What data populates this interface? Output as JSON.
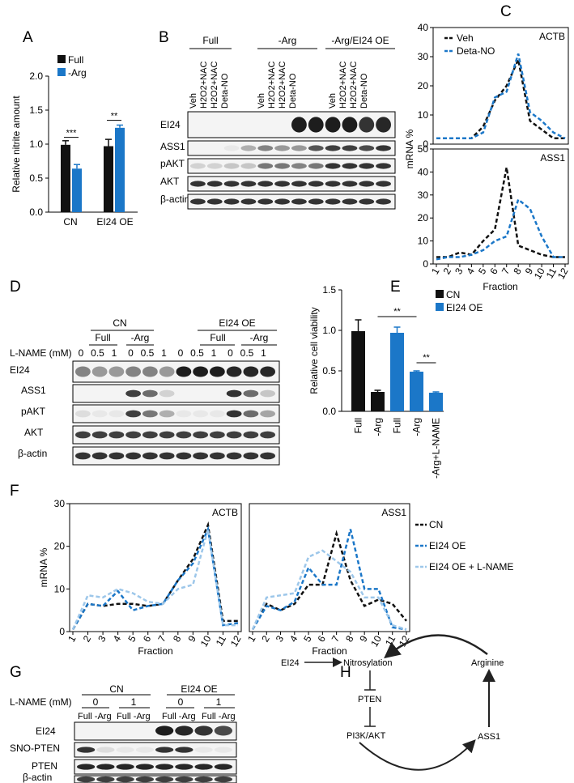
{
  "panel_labels": {
    "A": "A",
    "B": "B",
    "C": "C",
    "D": "D",
    "E": "E",
    "F": "F",
    "G": "G",
    "H": "H"
  },
  "colors": {
    "black": "#111111",
    "blue": "#1b77c8",
    "lightblue": "#9dc7ea"
  },
  "chart_data": [
    {
      "id": "A",
      "type": "bar",
      "ylabel": "Relative nitrite amount",
      "ylim": [
        0,
        2.0
      ],
      "yticks": [
        "0.0",
        "0.5",
        "1.0",
        "1.5",
        "2.0"
      ],
      "categories": [
        "CN",
        "EI24 OE"
      ],
      "series": [
        {
          "name": "Full",
          "values": [
            0.99,
            0.97
          ],
          "errors": [
            0.06,
            0.1
          ]
        },
        {
          "name": "-Arg",
          "values": [
            0.64,
            1.24
          ],
          "errors": [
            0.06,
            0.04
          ]
        }
      ],
      "significance": [
        "***",
        "**"
      ]
    },
    {
      "id": "C-top",
      "type": "line",
      "title": "ACTB",
      "ylim": [
        0,
        40
      ],
      "yticks": [
        "0",
        "10",
        "20",
        "30",
        "40"
      ],
      "series": [
        {
          "name": "Veh",
          "values": [
            2,
            2,
            2,
            2,
            6,
            15,
            20,
            29,
            8,
            5,
            2,
            2
          ]
        },
        {
          "name": "Deta-NO",
          "values": [
            2,
            2,
            2,
            2,
            4,
            16,
            18,
            31,
            11,
            8,
            4,
            2
          ]
        }
      ]
    },
    {
      "id": "C-bottom",
      "type": "line",
      "title": "ASS1",
      "ylim": [
        0,
        50
      ],
      "yticks": [
        "0",
        "10",
        "20",
        "30",
        "40",
        "50"
      ],
      "xlabel": "Fraction",
      "ylabel": "mRNA %",
      "x": [
        "1",
        "2",
        "3",
        "4",
        "5",
        "6",
        "7",
        "8",
        "9",
        "10",
        "11",
        "12"
      ],
      "series": [
        {
          "name": "Veh",
          "values": [
            3,
            3,
            5,
            4,
            10,
            15,
            42,
            8,
            6,
            4,
            3,
            3
          ]
        },
        {
          "name": "Deta-NO",
          "values": [
            2,
            3,
            3,
            4,
            6,
            10,
            12,
            28,
            24,
            12,
            3,
            3
          ]
        }
      ]
    },
    {
      "id": "E",
      "type": "bar",
      "ylabel": "Relative cell viability",
      "ylim": [
        0,
        1.5
      ],
      "yticks": [
        "0.0",
        "0.5",
        "1.0",
        "1.5"
      ],
      "categories": [
        "Full",
        "-Arg",
        "Full",
        "-Arg",
        "-Arg+L-NAME"
      ],
      "values": [
        0.99,
        0.24,
        0.97,
        0.49,
        0.23
      ],
      "errors": [
        0.14,
        0.02,
        0.07,
        0.01,
        0.01
      ],
      "series_names": [
        "CN",
        "EI24 OE"
      ],
      "significance": [
        "**",
        "**"
      ]
    },
    {
      "id": "F-left",
      "type": "line",
      "title": "ACTB",
      "ylim": [
        0,
        30
      ],
      "yticks": [
        "0",
        "10",
        "20",
        "30"
      ],
      "xlabel": "Fraction",
      "ylabel": "mRNA %",
      "x": [
        "1",
        "2",
        "3",
        "4",
        "5",
        "6",
        "7",
        "8",
        "9",
        "10",
        "11",
        "12"
      ],
      "series": [
        {
          "name": "CN",
          "values": [
            0.5,
            6.5,
            6,
            6.5,
            6.5,
            6,
            6.5,
            12,
            17,
            25,
            2.5,
            2.5
          ]
        },
        {
          "name": "EI24 OE",
          "values": [
            0.5,
            6.5,
            6,
            9.5,
            5,
            6,
            6.5,
            12,
            16,
            24,
            1.5,
            2
          ]
        },
        {
          "name": "EI24 OE + L-NAME",
          "values": [
            0.5,
            8.5,
            8,
            10,
            9,
            7,
            6.5,
            10,
            11,
            24,
            1.5,
            1.5
          ]
        }
      ]
    },
    {
      "id": "F-right",
      "type": "line",
      "title": "ASS1",
      "ylim": [
        0,
        30
      ],
      "xlabel": "Fraction",
      "x": [
        "1",
        "2",
        "3",
        "4",
        "5",
        "6",
        "7",
        "8",
        "9",
        "10",
        "11",
        "12"
      ],
      "series": [
        {
          "name": "CN",
          "values": [
            0.5,
            6.5,
            5,
            6.5,
            11,
            11,
            23,
            12,
            6,
            7.5,
            6.5,
            2.5
          ]
        },
        {
          "name": "EI24 OE",
          "values": [
            0.5,
            6,
            5,
            7,
            15,
            11,
            11,
            24,
            10,
            10,
            1,
            0.5
          ]
        },
        {
          "name": "EI24 OE + L-NAME",
          "values": [
            0.5,
            8,
            8.5,
            9,
            17.5,
            19,
            16.5,
            14,
            8,
            8,
            1.5,
            0.5
          ]
        }
      ]
    }
  ],
  "panelA": {
    "legend": [
      "Full",
      "-Arg"
    ]
  },
  "panelC": {
    "legend": [
      "Veh",
      "Deta-NO"
    ]
  },
  "panelE": {
    "legend": [
      "CN",
      "EI24 OE"
    ]
  },
  "panelF": {
    "legend": [
      "CN",
      "EI24 OE",
      "EI24 OE + L-NAME"
    ]
  },
  "panelB": {
    "groups": [
      "Full",
      "-Arg",
      "-Arg/EI24 OE"
    ],
    "lanes": [
      "Veh",
      "H2O2+NAC",
      "H2O2+NAC",
      "Deta-NO"
    ],
    "blots": [
      "EI24",
      "ASS1",
      "pAKT",
      "AKT",
      "β-actin"
    ]
  },
  "panelD": {
    "groups": [
      "CN",
      "EI24 OE"
    ],
    "subgroups": [
      "Full",
      "-Arg",
      "Full",
      "-Arg"
    ],
    "axis_label": "L-NAME (mM)",
    "doses": [
      "0",
      "0.5",
      "1"
    ],
    "blots": [
      "EI24",
      "ASS1",
      "pAKT",
      "AKT",
      "β-actin"
    ]
  },
  "panelG": {
    "groups": [
      "CN",
      "EI24 OE"
    ],
    "axis_label": "L-NAME (mM)",
    "doses": [
      "0",
      "1",
      "0",
      "1"
    ],
    "lane_label": "Full -Arg",
    "blots": [
      "EI24",
      "SNO-PTEN",
      "PTEN",
      "β-actin"
    ]
  },
  "panelH": {
    "nodes": {
      "ei24": "EI24",
      "nitro": "Nitrosylation",
      "pten": "PTEN",
      "pi3k": "PI3K/AKT",
      "ass1": "ASS1",
      "arg": "Arginine"
    }
  }
}
